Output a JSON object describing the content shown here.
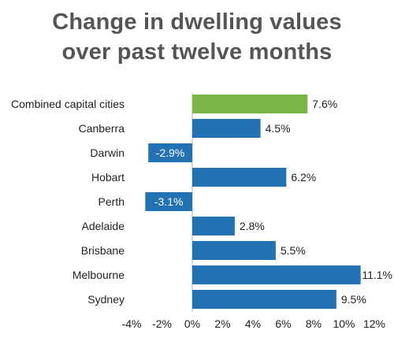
{
  "chart_data": {
    "type": "bar",
    "orientation": "horizontal",
    "title_lines": [
      "Change in dwelling values",
      "over past twelve months"
    ],
    "categories": [
      "Combined capital cities",
      "Canberra",
      "Darwin",
      "Hobart",
      "Perth",
      "Adelaide",
      "Brisbane",
      "Melbourne",
      "Sydney"
    ],
    "values": [
      7.6,
      4.5,
      -2.9,
      6.2,
      -3.1,
      2.8,
      5.5,
      11.1,
      9.5
    ],
    "value_labels": [
      "7.6%",
      "4.5%",
      "-2.9%",
      "6.2%",
      "-3.1%",
      "2.8%",
      "5.5%",
      "11.1%",
      "9.5%"
    ],
    "highlight_colors": [
      "#7ab648",
      "#2272b4",
      "#2272b4",
      "#2272b4",
      "#2272b4",
      "#2272b4",
      "#2272b4",
      "#2272b4",
      "#2272b4"
    ],
    "xlim": [
      -4,
      12
    ],
    "x_ticks": [
      -4,
      -2,
      0,
      2,
      4,
      6,
      8,
      10,
      12
    ],
    "x_tick_labels": [
      "-4%",
      "-2%",
      "0%",
      "2%",
      "4%",
      "6%",
      "8%",
      "10%",
      "12%"
    ],
    "grid": false,
    "colors": {
      "highlight": "#7ab648",
      "default": "#2272b4",
      "axis": "#b0b0b0",
      "text": "#222222"
    }
  }
}
